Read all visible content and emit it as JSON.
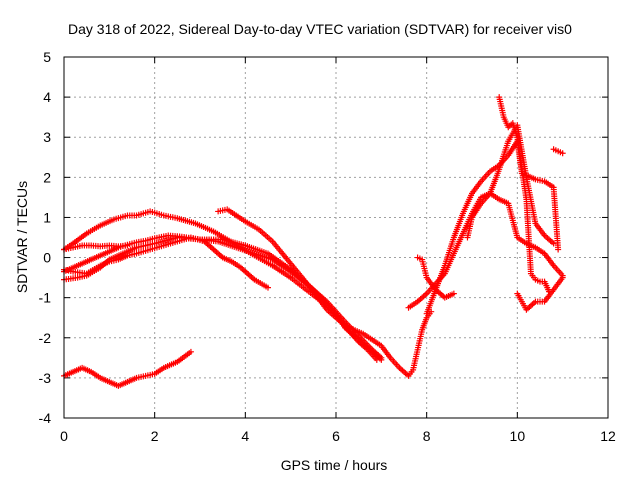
{
  "chart_data": {
    "type": "scatter",
    "title": "Day 318 of 2022, Sidereal Day-to-day VTEC variation (SDTVAR) for receiver vis0",
    "xlabel": "GPS time / hours",
    "ylabel": "SDTVAR / TECUs",
    "xlim": [
      0,
      12
    ],
    "ylim": [
      -4,
      5
    ],
    "xticks": [
      0,
      2,
      4,
      6,
      8,
      10,
      12
    ],
    "yticks": [
      -4,
      -3,
      -2,
      -1,
      0,
      1,
      2,
      3,
      4,
      5
    ],
    "grid": true,
    "marker": "+",
    "color": "#ff0000",
    "series": [
      {
        "name": "s1",
        "x": [
          0.0,
          0.2,
          0.5,
          0.8,
          1.1,
          1.4,
          1.6,
          1.9,
          2.0,
          2.2,
          2.5,
          2.9,
          3.3,
          3.6,
          3.9,
          4.2,
          4.6,
          5.0,
          5.4,
          5.8,
          6.1,
          6.3,
          6.5,
          6.7,
          6.9
        ],
        "y": [
          0.2,
          0.35,
          0.6,
          0.8,
          0.95,
          1.05,
          1.05,
          1.15,
          1.12,
          1.05,
          0.98,
          0.85,
          0.65,
          0.45,
          0.25,
          0.05,
          -0.2,
          -0.5,
          -0.85,
          -1.2,
          -1.55,
          -1.85,
          -2.1,
          -2.3,
          -2.55
        ]
      },
      {
        "name": "s2",
        "x": [
          0.0,
          0.3,
          0.5,
          0.8,
          1.0,
          1.3,
          1.6,
          2.0,
          2.5,
          3.0,
          3.4,
          3.8,
          4.2,
          4.6,
          5.0,
          5.4,
          5.8,
          6.2,
          6.5,
          6.8,
          7.0
        ],
        "y": [
          -0.55,
          -0.5,
          -0.45,
          -0.25,
          -0.05,
          0.1,
          0.25,
          0.35,
          0.5,
          0.45,
          0.4,
          0.25,
          0.1,
          -0.05,
          -0.35,
          -0.7,
          -1.1,
          -1.6,
          -1.95,
          -2.3,
          -2.5
        ]
      },
      {
        "name": "s3",
        "x": [
          0.0,
          0.2,
          0.4,
          0.6,
          0.8,
          1.0,
          1.2,
          1.4,
          1.6,
          1.8,
          2.0,
          2.3,
          2.6,
          3.0,
          3.5,
          4.0,
          4.5,
          5.0,
          5.5,
          6.0,
          6.2,
          6.5,
          6.8,
          7.0
        ],
        "y": [
          -0.35,
          -0.25,
          -0.15,
          -0.05,
          0.05,
          0.15,
          0.25,
          0.32,
          0.38,
          0.42,
          0.48,
          0.55,
          0.52,
          0.45,
          0.45,
          0.3,
          0.1,
          -0.3,
          -0.8,
          -1.4,
          -1.75,
          -2.05,
          -2.35,
          -2.55
        ]
      },
      {
        "name": "s4",
        "x": [
          0.0,
          0.2,
          0.5,
          0.8,
          1.0,
          1.2,
          1.4,
          1.6,
          1.9,
          2.2,
          2.5,
          2.8,
          3.1,
          3.3,
          3.5,
          3.7,
          3.9,
          4.0,
          4.2,
          4.5
        ],
        "y": [
          -0.3,
          -0.35,
          -0.4,
          -0.2,
          -0.1,
          -0.05,
          0.05,
          0.1,
          0.2,
          0.3,
          0.4,
          0.5,
          0.4,
          0.2,
          0.0,
          -0.1,
          -0.25,
          -0.35,
          -0.55,
          -0.75
        ]
      },
      {
        "name": "s5",
        "x": [
          0.0,
          0.2,
          0.4,
          0.6,
          0.8,
          1.0,
          1.2,
          1.4
        ],
        "y": [
          0.2,
          0.25,
          0.3,
          0.3,
          0.28,
          0.3,
          0.28,
          0.3
        ]
      },
      {
        "name": "s6",
        "x": [
          0.0,
          0.2,
          0.4,
          0.6,
          0.8,
          1.0,
          1.2,
          1.4,
          1.6,
          1.8,
          2.0,
          2.2,
          2.5,
          2.8
        ],
        "y": [
          -2.95,
          -2.85,
          -2.75,
          -2.85,
          -3.0,
          -3.1,
          -3.2,
          -3.1,
          -3.0,
          -2.95,
          -2.9,
          -2.75,
          -2.6,
          -2.35
        ]
      },
      {
        "name": "s7",
        "x": [
          3.4,
          3.6,
          3.8,
          4.0,
          4.3,
          4.6,
          5.0,
          5.4,
          5.8,
          6.2,
          6.6,
          7.0,
          7.2,
          7.4,
          7.6,
          7.7,
          7.8,
          7.9,
          8.0,
          8.1
        ],
        "y": [
          1.15,
          1.2,
          1.05,
          0.9,
          0.7,
          0.4,
          -0.15,
          -0.7,
          -1.3,
          -1.7,
          -1.9,
          -2.2,
          -2.5,
          -2.75,
          -2.95,
          -2.8,
          -2.3,
          -1.8,
          -1.5,
          -1.35
        ]
      },
      {
        "name": "s8",
        "x": [
          7.6,
          7.8,
          8.0,
          8.2,
          8.4,
          8.6,
          8.8,
          9.0,
          9.2,
          9.4,
          9.6,
          9.8,
          10.0,
          10.2,
          10.4,
          10.6,
          10.8,
          11.0
        ],
        "y": [
          -1.25,
          -1.1,
          -0.9,
          -0.65,
          -0.4,
          0.1,
          0.6,
          1.1,
          1.5,
          1.6,
          1.45,
          1.35,
          0.5,
          0.35,
          0.25,
          0.1,
          -0.2,
          -0.45
        ]
      },
      {
        "name": "s9",
        "x": [
          8.0,
          8.2,
          8.4,
          8.6,
          8.8,
          9.0,
          9.2,
          9.4,
          9.6,
          9.8,
          10.0,
          10.1,
          10.2,
          10.4,
          10.6,
          10.8,
          10.9
        ],
        "y": [
          -1.4,
          -0.8,
          -0.2,
          0.5,
          1.1,
          1.6,
          1.9,
          2.15,
          2.3,
          2.55,
          2.9,
          2.1,
          2.05,
          1.95,
          1.9,
          1.75,
          0.2
        ]
      },
      {
        "name": "s10",
        "x": [
          8.9,
          9.0,
          9.2,
          9.4,
          9.6,
          9.8,
          10.0,
          10.2,
          10.4,
          10.6,
          10.8
        ],
        "y": [
          0.5,
          1.0,
          1.35,
          1.6,
          2.2,
          2.9,
          3.3,
          2.0,
          0.85,
          0.55,
          0.35
        ]
      },
      {
        "name": "s11",
        "x": [
          9.6,
          9.7,
          9.8,
          9.9,
          10.0,
          10.1,
          10.2,
          10.3,
          10.4,
          10.5,
          10.6,
          10.7
        ],
        "y": [
          4.0,
          3.5,
          3.25,
          3.35,
          3.0,
          2.2,
          1.45,
          -0.4,
          -0.55,
          -0.6,
          -0.6,
          -0.85
        ]
      },
      {
        "name": "s12",
        "x": [
          10.0,
          10.2,
          10.4,
          10.6,
          10.8,
          11.0
        ],
        "y": [
          -0.9,
          -1.3,
          -1.1,
          -1.1,
          -0.8,
          -0.5
        ]
      },
      {
        "name": "s13",
        "x": [
          7.8,
          7.9,
          8.0,
          8.2,
          8.4,
          8.6
        ],
        "y": [
          0.0,
          -0.05,
          -0.5,
          -0.8,
          -1.0,
          -0.9
        ]
      },
      {
        "name": "s14",
        "x": [
          10.8,
          10.9,
          11.0
        ],
        "y": [
          2.7,
          2.65,
          2.6
        ]
      }
    ]
  }
}
